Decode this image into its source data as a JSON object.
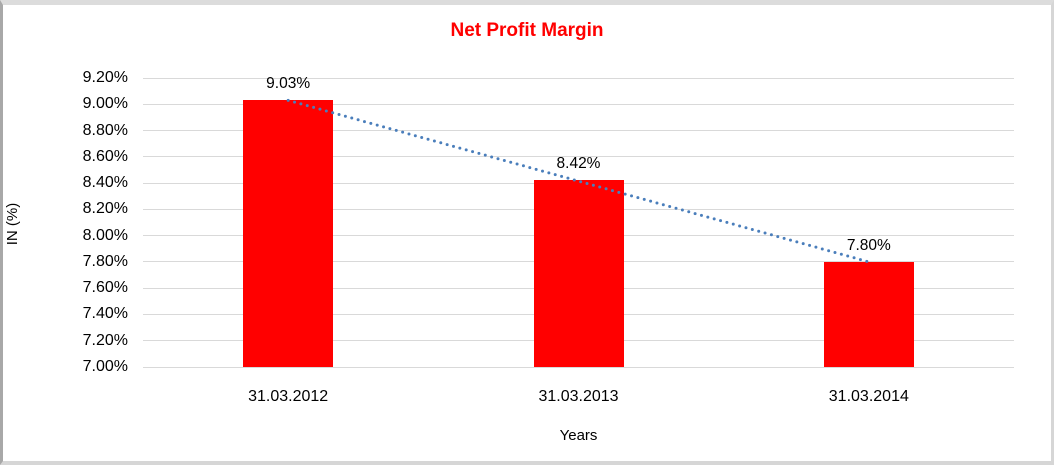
{
  "chart_data": {
    "type": "bar",
    "title": "Net Profit Margin",
    "xlabel": "Years",
    "ylabel": "IN (%)",
    "categories": [
      "31.03.2012",
      "31.03.2013",
      "31.03.2014"
    ],
    "values": [
      9.03,
      8.42,
      7.8
    ],
    "value_labels": [
      "9.03%",
      "8.42%",
      "7.80%"
    ],
    "ylim": [
      7.0,
      9.2
    ],
    "ytick_step": 0.2,
    "ytick_labels": [
      "9.20%",
      "9.00%",
      "8.80%",
      "8.60%",
      "8.40%",
      "8.20%",
      "8.00%",
      "7.80%",
      "7.60%",
      "7.40%",
      "7.20%",
      "7.00%"
    ],
    "grid": true,
    "legend": false,
    "trendline": {
      "type": "linear",
      "style": "dotted"
    }
  },
  "colors": {
    "bar": "#ff0000",
    "title": "#ff0000",
    "trendline": "#4a7ebb",
    "gridline": "#d9d9d9",
    "text": "#000000"
  }
}
